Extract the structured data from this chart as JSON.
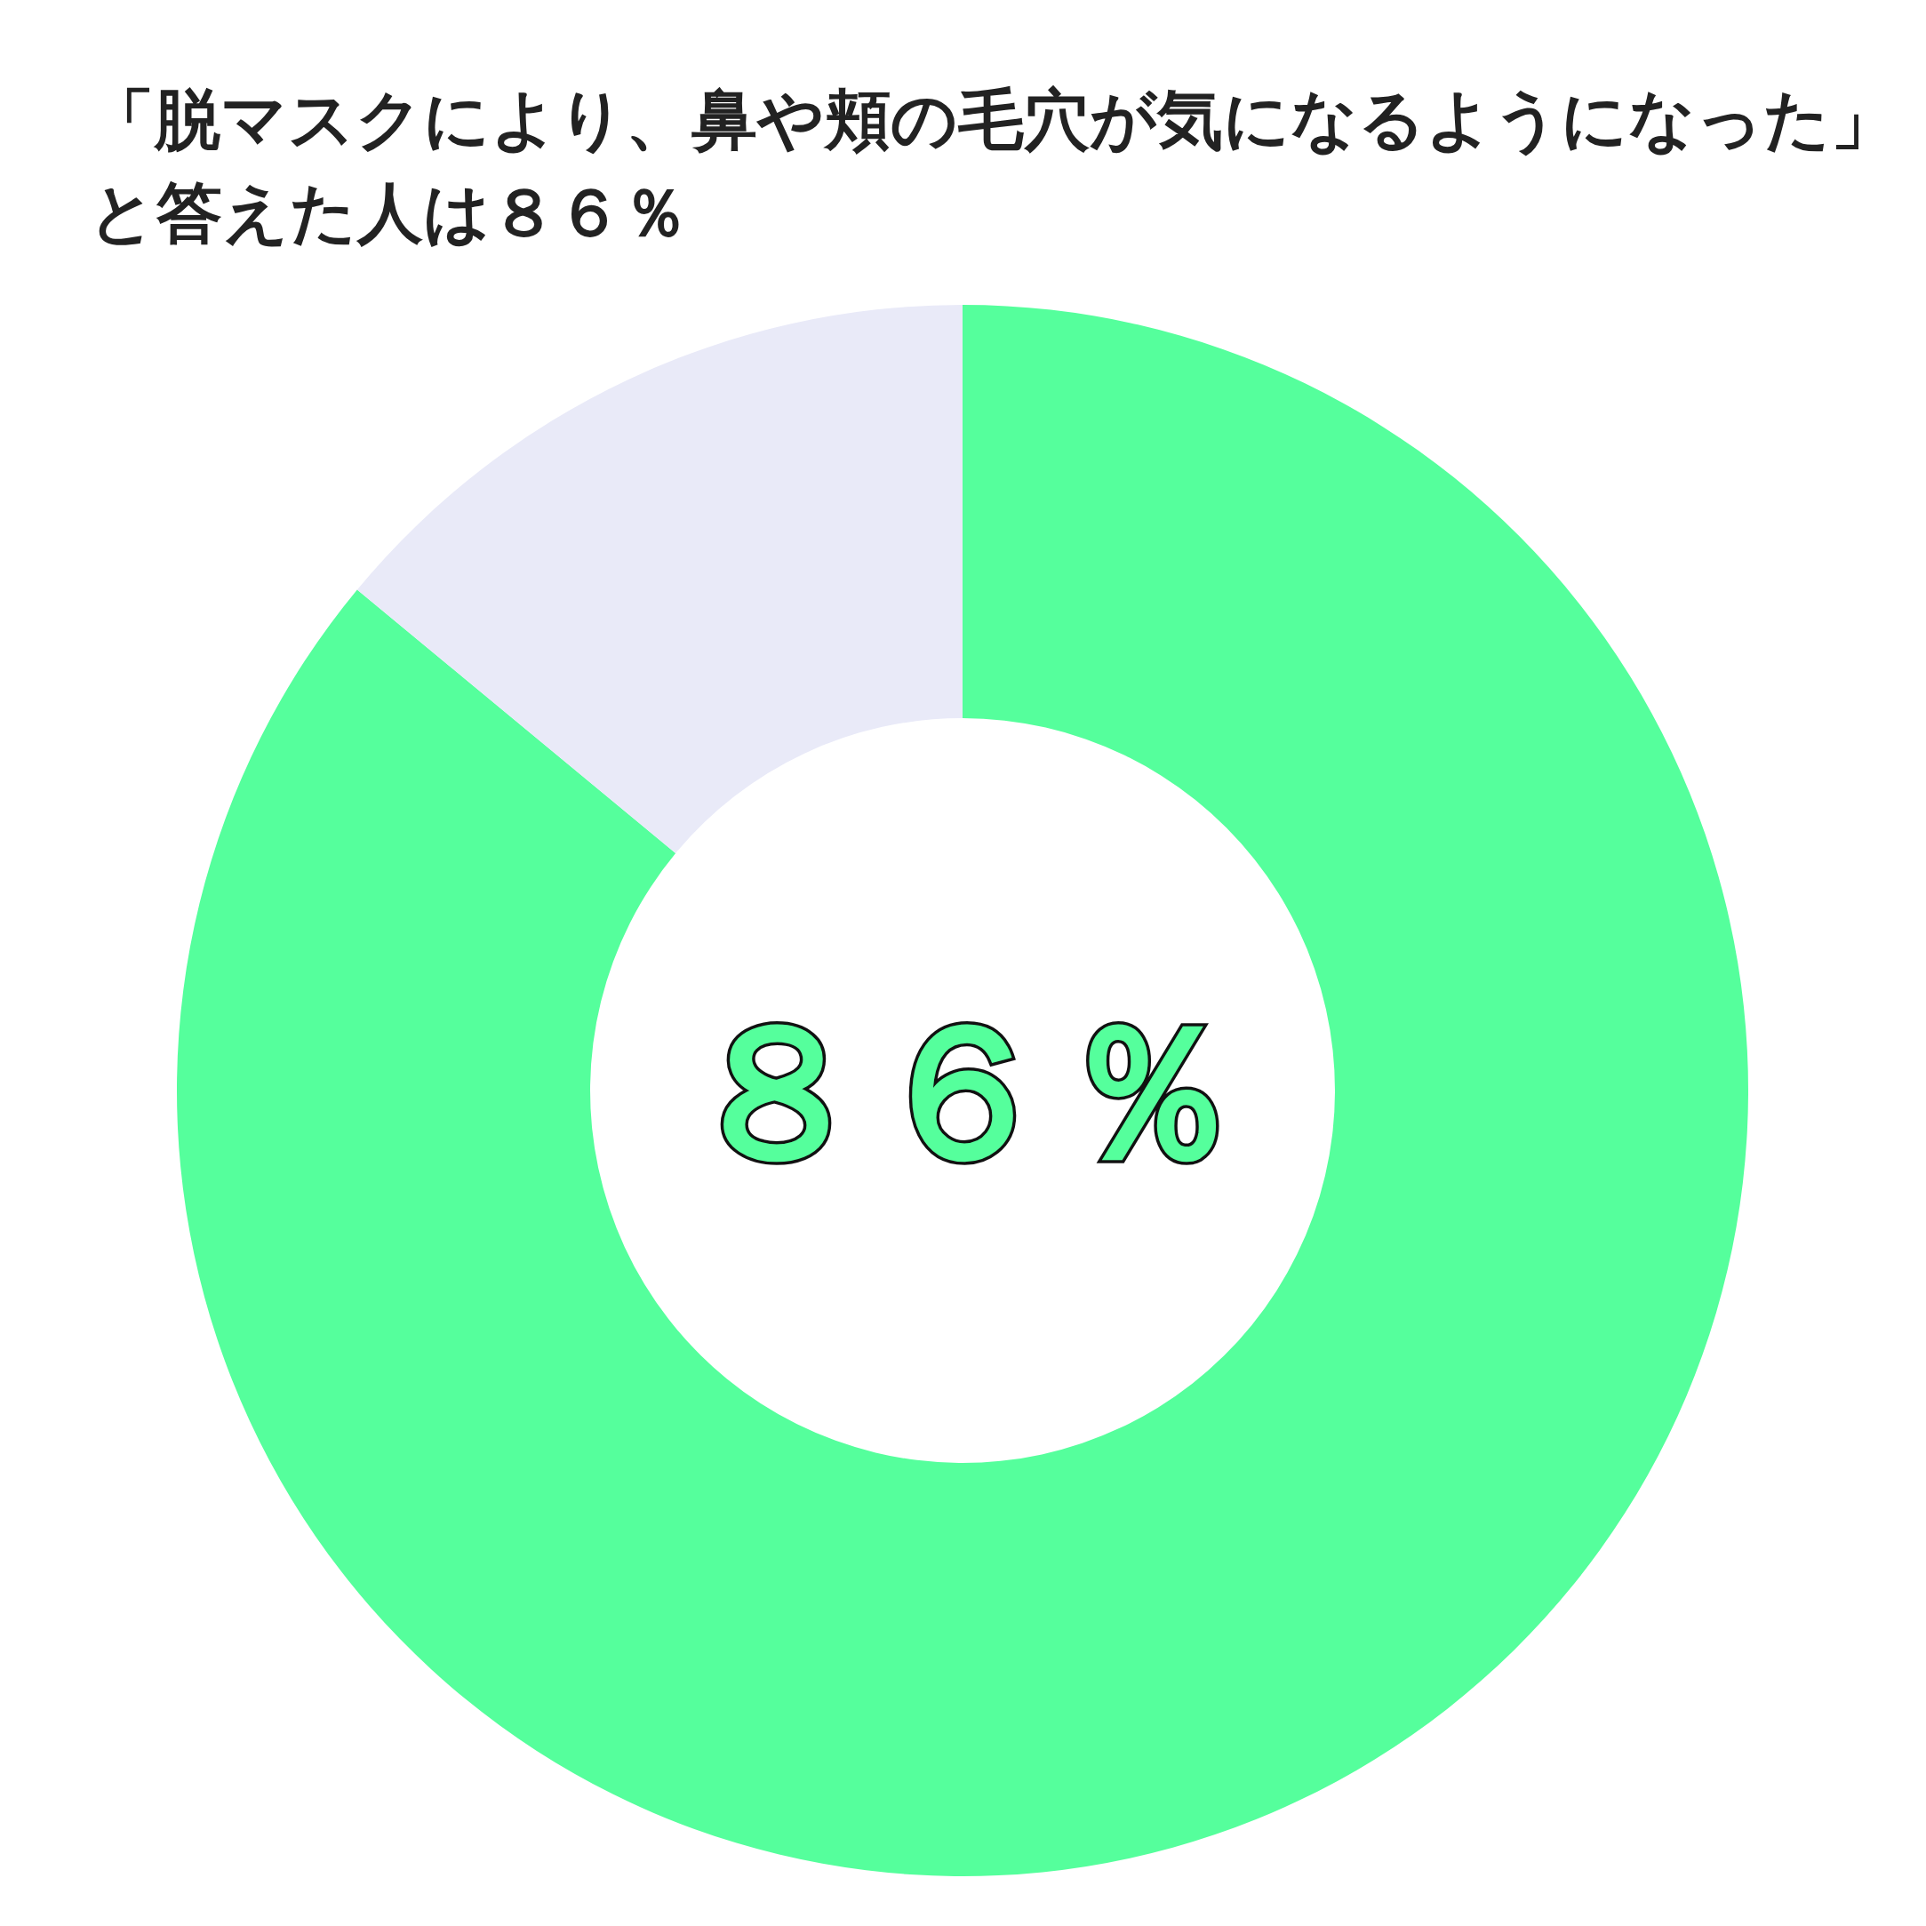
{
  "chart_data": {
    "type": "donut",
    "title": "「脱マスクにより、鼻や頬の毛穴が気になるようになった」と答えた人は８６％",
    "categories": [
      null,
      null
    ],
    "values": [
      86,
      14
    ],
    "colors": [
      "#55ff9c",
      "#e9eaf8"
    ],
    "value_labels": [
      "８６％",
      null
    ]
  }
}
